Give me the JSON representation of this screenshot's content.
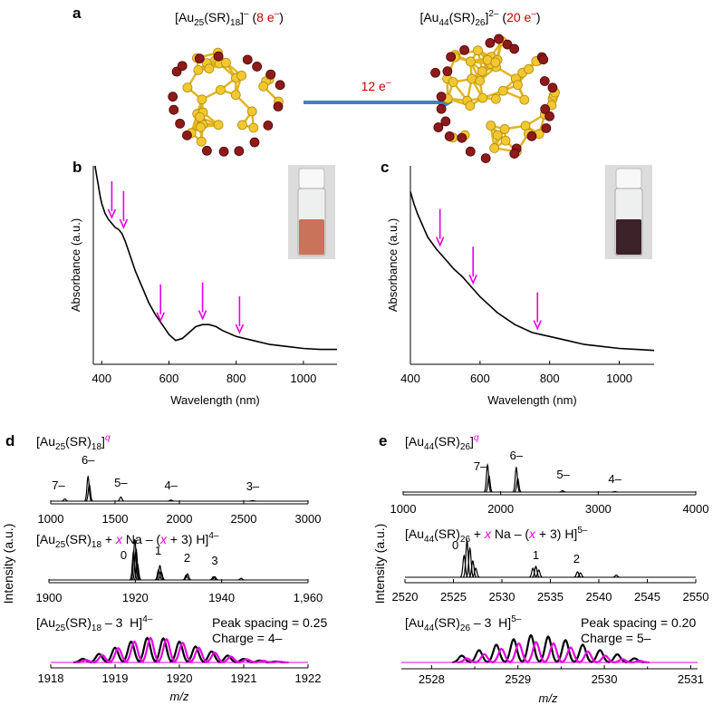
{
  "panel_labels": [
    "a",
    "b",
    "c",
    "d",
    "e"
  ],
  "scheme": {
    "left_label": [
      {
        "text": "[Au"
      },
      {
        "text": "25",
        "style": "sub"
      },
      {
        "text": "(SR)"
      },
      {
        "text": "18",
        "style": "sub"
      },
      {
        "text": "]"
      },
      {
        "text": "–",
        "style": "sup"
      },
      {
        "text": " ("
      },
      {
        "text": "8 e",
        "color": "#c00000"
      },
      {
        "text": "–",
        "style": "sup",
        "color": "#c00000"
      },
      {
        "text": ")"
      }
    ],
    "right_label": [
      {
        "text": "[Au"
      },
      {
        "text": "44",
        "style": "sub"
      },
      {
        "text": "(SR)"
      },
      {
        "text": "26",
        "style": "sub"
      },
      {
        "text": "]"
      },
      {
        "text": "2–",
        "style": "sup"
      },
      {
        "text": " ("
      },
      {
        "text": "20 e",
        "color": "#c00000"
      },
      {
        "text": "–",
        "style": "sup",
        "color": "#c00000"
      },
      {
        "text": ")"
      }
    ],
    "arrow_label": [
      {
        "text": "12 e",
        "color": "#c00000"
      },
      {
        "text": "–",
        "style": "sup",
        "color": "#c00000"
      }
    ]
  },
  "intensity_labels": [
    "Intensity (a.u.)",
    "Intensity (a.u.)"
  ],
  "chart_data": [
    {
      "type": "line",
      "xlabel": "Wavelength (nm)",
      "ylabel": "Absorbance (a.u.)",
      "xlim": [
        375,
        1100
      ],
      "xticks": [
        400,
        600,
        800,
        1000
      ],
      "ylim": [
        0,
        1
      ],
      "color": "#000000",
      "x": [
        380,
        385,
        390,
        395,
        400,
        410,
        420,
        430,
        440,
        450,
        460,
        470,
        480,
        500,
        520,
        540,
        560,
        580,
        600,
        620,
        640,
        660,
        680,
        700,
        720,
        740,
        760,
        800,
        850,
        900,
        950,
        1000,
        1050,
        1100
      ],
      "values": [
        1.0,
        0.95,
        0.9,
        0.85,
        0.81,
        0.76,
        0.73,
        0.71,
        0.69,
        0.68,
        0.66,
        0.62,
        0.57,
        0.47,
        0.39,
        0.31,
        0.25,
        0.2,
        0.15,
        0.12,
        0.13,
        0.16,
        0.19,
        0.2,
        0.2,
        0.19,
        0.17,
        0.14,
        0.12,
        0.1,
        0.09,
        0.08,
        0.075,
        0.075
      ],
      "arrows": {
        "color": "#e600e6",
        "x": [
          430,
          465,
          575,
          700,
          810
        ],
        "y": [
          0.74,
          0.69,
          0.22,
          0.23,
          0.16
        ]
      },
      "inset_liquid": "#c8735a"
    },
    {
      "type": "line",
      "xlabel": "Wavelength (nm)",
      "ylabel": "Absorbance (a.u.)",
      "xlim": [
        400,
        1100
      ],
      "xticks": [
        400,
        600,
        800,
        1000
      ],
      "ylim": [
        0,
        1
      ],
      "color": "#000000",
      "x": [
        400,
        410,
        420,
        435,
        450,
        475,
        500,
        525,
        550,
        575,
        600,
        625,
        650,
        700,
        750,
        800,
        850,
        900,
        950,
        1000,
        1050,
        1100
      ],
      "values": [
        0.87,
        0.81,
        0.76,
        0.7,
        0.64,
        0.58,
        0.53,
        0.48,
        0.44,
        0.39,
        0.34,
        0.3,
        0.26,
        0.2,
        0.16,
        0.14,
        0.12,
        0.1,
        0.09,
        0.08,
        0.075,
        0.07
      ],
      "arrows": {
        "color": "#e600e6",
        "x": [
          485,
          580,
          765
        ],
        "y": [
          0.6,
          0.41,
          0.18
        ]
      },
      "inset_liquid": "#3b2228"
    },
    {
      "type": "spectrum",
      "title": [
        {
          "text": "[Au"
        },
        {
          "text": "25",
          "style": "sub"
        },
        {
          "text": "(SR)"
        },
        {
          "text": "18",
          "style": "sub"
        },
        {
          "text": "]"
        },
        {
          "text": "q",
          "style": "sup italic",
          "color": "#e600e6"
        }
      ],
      "xlim": [
        1000,
        3000
      ],
      "xticks": [
        1000,
        1500,
        2000,
        2500,
        3000
      ],
      "ylim": [
        0,
        1
      ],
      "series": [
        {
          "color": "#000000",
          "x": [
            1110,
            1290,
            1300,
            1545,
            1935,
            2570
          ],
          "values": [
            0.08,
            0.9,
            0.6,
            0.15,
            0.04,
            0.02
          ]
        }
      ],
      "label_color": "#e600e6",
      "peak_labels": [
        {
          "text": "7–",
          "x": 1060,
          "y": 0.43
        },
        {
          "text": "6–",
          "x": 1290,
          "y": 1.37
        },
        {
          "text": "5–",
          "x": 1545,
          "y": 0.53
        },
        {
          "text": "4–",
          "x": 1935,
          "y": 0.43
        },
        {
          "text": "3–",
          "x": 2570,
          "y": 0.4
        }
      ]
    },
    {
      "type": "spectrum",
      "title": [
        {
          "text": "[Au"
        },
        {
          "text": "25",
          "style": "sub"
        },
        {
          "text": "(SR)"
        },
        {
          "text": "18",
          "style": "sub"
        },
        {
          "text": " + "
        },
        {
          "text": "x",
          "style": "italic",
          "color": "#e600e6"
        },
        {
          "text": " Na – ("
        },
        {
          "text": "x",
          "style": "italic",
          "color": "#e600e6"
        },
        {
          "text": " + 3) H]"
        },
        {
          "text": "4–",
          "style": "sup"
        }
      ],
      "xlim": [
        1900,
        1960
      ],
      "xticks": [
        1900,
        1920,
        1940,
        {
          "value": 1960,
          "label": "1,960"
        }
      ],
      "ylim": [
        0,
        1
      ],
      "series": [
        {
          "color": "#000000",
          "x": [
            1919.6,
            1919.9,
            1920.2,
            1920.5,
            1925.4,
            1925.7,
            1926.0,
            1931.8,
            1932.1,
            1938.1,
            1938.4,
            1944.5
          ],
          "values": [
            0.7,
            1.0,
            0.75,
            0.4,
            0.25,
            0.35,
            0.2,
            0.12,
            0.15,
            0.08,
            0.08,
            0.04
          ]
        }
      ],
      "label_color": "#e600e6",
      "peak_labels": [
        {
          "text": "0",
          "x": 1917.3,
          "y": 0.51
        },
        {
          "text": "1",
          "x": 1925.3,
          "y": 0.62
        },
        {
          "text": "2",
          "x": 1932,
          "y": 0.44
        },
        {
          "text": "3",
          "x": 1938.4,
          "y": 0.38
        }
      ]
    },
    {
      "type": "spectrum",
      "title": [
        {
          "text": "[Au"
        },
        {
          "text": "25",
          "style": "sub"
        },
        {
          "text": "(SR)"
        },
        {
          "text": "18",
          "style": "sub"
        },
        {
          "text": " – 3  H]"
        },
        {
          "text": "4–",
          "style": "sup"
        }
      ],
      "xlim": [
        1918,
        1922
      ],
      "xticks": [
        1918,
        1919,
        1920,
        1921,
        1922
      ],
      "ylim": [
        0,
        1
      ],
      "xlabel": "m/z",
      "annotations": [
        "Peak spacing = 0.25",
        "Charge = 4–"
      ],
      "series": [
        {
          "color": "#000000",
          "x": [
            1918.5,
            1918.75,
            1919,
            1919.25,
            1919.5,
            1919.75,
            1920,
            1920.25,
            1920.5,
            1920.75,
            1921,
            1921.25,
            1921.5
          ],
          "values": [
            0.15,
            0.35,
            0.6,
            0.85,
            1.0,
            0.98,
            0.85,
            0.65,
            0.45,
            0.28,
            0.15,
            0.08,
            0.04
          ]
        },
        {
          "color": "#e600e6",
          "x": [
            1918.55,
            1918.8,
            1919.05,
            1919.3,
            1919.55,
            1919.8,
            1920.05,
            1920.3,
            1920.55,
            1920.8,
            1921.05,
            1921.3,
            1921.55
          ],
          "values": [
            0.1,
            0.3,
            0.58,
            0.85,
            1.0,
            0.95,
            0.8,
            0.6,
            0.4,
            0.24,
            0.13,
            0.07,
            0.03
          ]
        }
      ]
    },
    {
      "type": "spectrum",
      "title": [
        {
          "text": "[Au"
        },
        {
          "text": "44",
          "style": "sub"
        },
        {
          "text": "(SR)"
        },
        {
          "text": "26",
          "style": "sub"
        },
        {
          "text": "]"
        },
        {
          "text": "q",
          "style": "sup italic",
          "color": "#e600e6"
        }
      ],
      "xlim": [
        1000,
        4000
      ],
      "xticks": [
        1000,
        2000,
        3000,
        4000
      ],
      "ylim": [
        0,
        1
      ],
      "series": [
        {
          "color": "#000000",
          "x": [
            1865,
            1880,
            2160,
            2175,
            2635,
            3170
          ],
          "values": [
            1.0,
            0.6,
            0.9,
            0.5,
            0.05,
            0.02
          ]
        }
      ],
      "label_color": "#e600e6",
      "peak_labels": [
        {
          "text": "7–",
          "x": 1790,
          "y": 0.8
        },
        {
          "text": "6–",
          "x": 2160,
          "y": 1.2
        },
        {
          "text": "5–",
          "x": 2640,
          "y": 0.5
        },
        {
          "text": "4–",
          "x": 3170,
          "y": 0.33
        }
      ]
    },
    {
      "type": "spectrum",
      "title": [
        {
          "text": "[Au"
        },
        {
          "text": "44",
          "style": "sub"
        },
        {
          "text": "(SR)"
        },
        {
          "text": "26",
          "style": "sub"
        },
        {
          "text": " + "
        },
        {
          "text": "x",
          "style": "italic",
          "color": "#e600e6"
        },
        {
          "text": " Na – ("
        },
        {
          "text": "x",
          "style": "italic",
          "color": "#e600e6"
        },
        {
          "text": " + 3) H]"
        },
        {
          "text": "5–",
          "style": "sup"
        }
      ],
      "xlim": [
        2520,
        2550
      ],
      "xticks": [
        2520,
        2525,
        2530,
        2535,
        2540,
        2545,
        2550
      ],
      "ylim": [
        0,
        1
      ],
      "series": [
        {
          "color": "#000000",
          "x": [
            2526.1,
            2526.4,
            2526.7,
            2527.0,
            2527.3,
            2533.2,
            2533.5,
            2533.8,
            2537.8,
            2538.1,
            2541.8
          ],
          "values": [
            0.6,
            1.0,
            0.8,
            0.45,
            0.25,
            0.25,
            0.3,
            0.2,
            0.15,
            0.12,
            0.06
          ]
        }
      ],
      "label_color": "#e600e6",
      "peak_labels": [
        {
          "text": "0",
          "x": 2525.2,
          "y": 0.78
        },
        {
          "text": "1",
          "x": 2533.5,
          "y": 0.5
        },
        {
          "text": "2",
          "x": 2537.7,
          "y": 0.4
        }
      ]
    },
    {
      "type": "spectrum",
      "title": [
        {
          "text": "[Au"
        },
        {
          "text": "44",
          "style": "sub"
        },
        {
          "text": "(SR)"
        },
        {
          "text": "26",
          "style": "sub"
        },
        {
          "text": " – 3  H]"
        },
        {
          "text": "5–",
          "style": "sup"
        }
      ],
      "xlim": [
        2527.65,
        2531.08
      ],
      "xticks": [
        2528,
        2528.5,
        2529,
        2529.5,
        2530,
        2530.5,
        2531
      ],
      "ylim": [
        0,
        1
      ],
      "xlabel": "m/z",
      "annotations": [
        "Peak spacing = 0.20",
        "Charge = 5–"
      ],
      "series": [
        {
          "color": "#000000",
          "x": [
            2528.35,
            2528.55,
            2528.75,
            2528.95,
            2529.15,
            2529.35,
            2529.55,
            2529.75,
            2529.95,
            2530.15,
            2530.35
          ],
          "values": [
            0.25,
            0.45,
            0.65,
            0.85,
            1.0,
            0.95,
            0.82,
            0.65,
            0.45,
            0.3,
            0.15
          ]
        },
        {
          "color": "#e600e6",
          "x": [
            2528.41,
            2528.61,
            2528.81,
            2529.01,
            2529.21,
            2529.41,
            2529.61,
            2529.81,
            2530.01,
            2530.21,
            2530.41
          ],
          "values": [
            0.15,
            0.3,
            0.5,
            0.7,
            0.75,
            0.7,
            0.55,
            0.4,
            0.25,
            0.12,
            0.06
          ]
        }
      ]
    }
  ]
}
